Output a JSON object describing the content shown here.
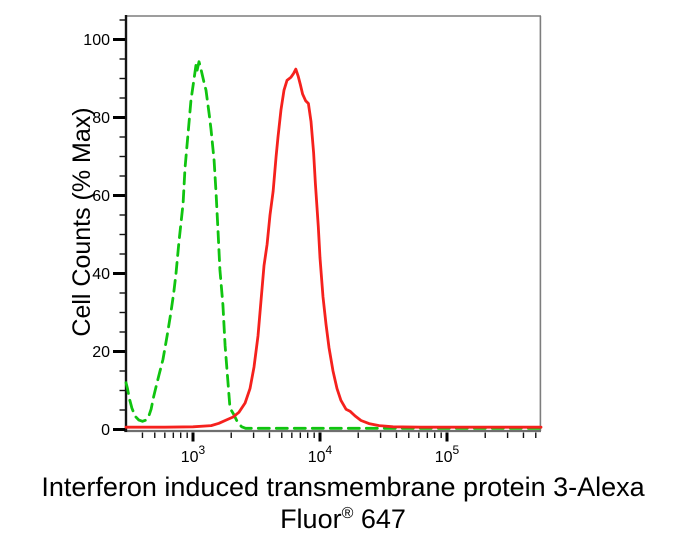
{
  "caption": {
    "line1": "Interferon induced transmembrane protein 3-Alexa",
    "line2_word": "Fluor",
    "line2_sup": "®",
    "line2_rest": " 647"
  },
  "chart_data": {
    "type": "line",
    "subtype": "flow-cytometry-histogram",
    "title": "",
    "xlabel": "Interferon induced transmembrane protein 3-Alexa Fluor® 647",
    "ylabel": "Cell Counts (% Max)",
    "grid": false,
    "legend": "none",
    "x_axis": {
      "scale": "log",
      "range": [
        297,
        550000
      ],
      "major_ticks": [
        {
          "value": 1000,
          "label_base": "10",
          "label_exp": "3"
        },
        {
          "value": 10000,
          "label_base": "10",
          "label_exp": "4"
        },
        {
          "value": 100000,
          "label_base": "10",
          "label_exp": "5"
        }
      ],
      "minor_ticks": [
        400,
        500,
        600,
        700,
        800,
        900,
        2000,
        3000,
        4000,
        5000,
        6000,
        7000,
        8000,
        9000,
        20000,
        30000,
        40000,
        50000,
        60000,
        70000,
        80000,
        90000,
        200000,
        300000,
        400000,
        500000
      ]
    },
    "y_axis": {
      "scale": "linear",
      "range": [
        0,
        106
      ],
      "major_ticks": [
        {
          "value": 0,
          "label": "0"
        },
        {
          "value": 20,
          "label": "20"
        },
        {
          "value": 40,
          "label": "40"
        },
        {
          "value": 60,
          "label": "60"
        },
        {
          "value": 80,
          "label": "80"
        },
        {
          "value": 100,
          "label": "100"
        }
      ],
      "minor_ticks": [
        5,
        10,
        15,
        25,
        30,
        35,
        45,
        50,
        55,
        65,
        70,
        75,
        85,
        90,
        95,
        105
      ]
    },
    "series": [
      {
        "id": "green-dashed",
        "line_style": "dashed",
        "color": "#10c410",
        "peak": {
          "x": 1100,
          "y": 94
        },
        "points": [
          [
            297,
            12
          ],
          [
            305,
            10.5
          ],
          [
            315,
            8
          ],
          [
            330,
            5.5
          ],
          [
            350,
            3.4
          ],
          [
            375,
            2.4
          ],
          [
            400,
            2.1
          ],
          [
            425,
            2.4
          ],
          [
            450,
            3.6
          ],
          [
            468,
            5.2
          ],
          [
            490,
            8.5
          ],
          [
            512,
            11
          ],
          [
            540,
            14
          ],
          [
            580,
            18
          ],
          [
            625,
            24
          ],
          [
            670,
            30
          ],
          [
            705,
            35
          ],
          [
            735,
            40
          ],
          [
            775,
            48
          ],
          [
            835,
            58
          ],
          [
            865,
            67
          ],
          [
            915,
            76
          ],
          [
            965,
            84.5
          ],
          [
            1020,
            90
          ],
          [
            1056,
            93.5
          ],
          [
            1075,
            92
          ],
          [
            1115,
            94.3
          ],
          [
            1155,
            92.5
          ],
          [
            1220,
            89
          ],
          [
            1265,
            87
          ],
          [
            1340,
            81
          ],
          [
            1385,
            77
          ],
          [
            1465,
            69
          ],
          [
            1520,
            60.5
          ],
          [
            1575,
            50.5
          ],
          [
            1630,
            41
          ],
          [
            1720,
            32
          ],
          [
            1790,
            21.5
          ],
          [
            1885,
            12
          ],
          [
            1955,
            5.5
          ],
          [
            2100,
            3.8
          ],
          [
            2250,
            1.8
          ],
          [
            2420,
            0.7
          ],
          [
            2600,
            0.3
          ],
          [
            5000,
            0.3
          ],
          [
            20000,
            0.3
          ],
          [
            80000,
            0.3
          ],
          [
            250000,
            0.3
          ],
          [
            550000,
            0.3
          ]
        ]
      },
      {
        "id": "red-solid",
        "line_style": "solid",
        "color": "#f5211d",
        "peak": {
          "x": 6400,
          "y": 92.4
        },
        "points": [
          [
            297,
            0.6
          ],
          [
            600,
            0.6
          ],
          [
            1000,
            0.7
          ],
          [
            1390,
            1.0
          ],
          [
            1600,
            1.6
          ],
          [
            1820,
            2.4
          ],
          [
            2070,
            3.2
          ],
          [
            2300,
            4.4
          ],
          [
            2570,
            6.8
          ],
          [
            2810,
            10.5
          ],
          [
            3020,
            16
          ],
          [
            3250,
            24
          ],
          [
            3430,
            33
          ],
          [
            3620,
            42
          ],
          [
            3830,
            47.5
          ],
          [
            4040,
            55
          ],
          [
            4270,
            61
          ],
          [
            4510,
            70
          ],
          [
            4670,
            75
          ],
          [
            4930,
            82
          ],
          [
            5210,
            87
          ],
          [
            5500,
            89.5
          ],
          [
            5900,
            90.3
          ],
          [
            6200,
            91.3
          ],
          [
            6450,
            92.4
          ],
          [
            6750,
            90.5
          ],
          [
            7000,
            88.5
          ],
          [
            7300,
            86
          ],
          [
            7700,
            84.3
          ],
          [
            8100,
            83.6
          ],
          [
            8500,
            79
          ],
          [
            8900,
            71
          ],
          [
            9200,
            63
          ],
          [
            9700,
            52
          ],
          [
            10000,
            44
          ],
          [
            10560,
            34
          ],
          [
            11140,
            27
          ],
          [
            11780,
            21
          ],
          [
            12650,
            15
          ],
          [
            13610,
            10.5
          ],
          [
            14620,
            7.5
          ],
          [
            16030,
            5.2
          ],
          [
            17220,
            4.7
          ],
          [
            18860,
            3.5
          ],
          [
            21040,
            2.3
          ],
          [
            24320,
            1.5
          ],
          [
            29200,
            1.0
          ],
          [
            37600,
            0.7
          ],
          [
            62000,
            0.6
          ],
          [
            155000,
            0.6
          ],
          [
            550000,
            0.6
          ]
        ]
      }
    ]
  }
}
